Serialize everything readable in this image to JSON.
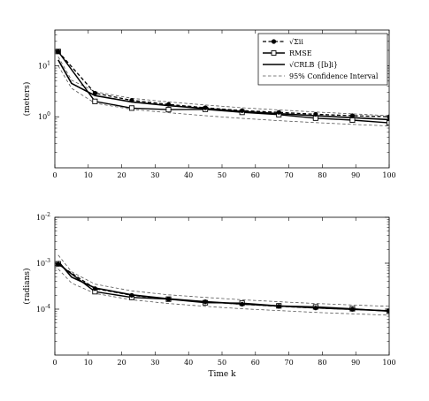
{
  "chart_data": [
    {
      "type": "line",
      "yscale": "log",
      "ylim": [
        0.1,
        50
      ],
      "xlim": [
        0,
        100
      ],
      "xticks": [
        0,
        10,
        20,
        30,
        40,
        50,
        60,
        70,
        80,
        90,
        100
      ],
      "yticks": [
        {
          "value": 1,
          "base": "10",
          "exp": "0"
        },
        {
          "value": 10,
          "base": "10",
          "exp": "1"
        }
      ],
      "xlabel": "",
      "ylabel": "(meters)",
      "legend": {
        "placement": "top-right",
        "entries": [
          {
            "label": "√Σii",
            "style": "dashed-circle"
          },
          {
            "label": "RMSE",
            "style": "solid-square"
          },
          {
            "label": "√CRLB {[b]i}",
            "style": "solid"
          },
          {
            "label": "95% Confidence Interval",
            "style": "dashed-gray"
          }
        ]
      },
      "series": [
        {
          "name": "√Σii",
          "x": [
            1,
            12,
            23,
            34,
            45,
            56,
            67,
            78,
            89,
            100
          ],
          "y": [
            19,
            2.9,
            2.1,
            1.75,
            1.5,
            1.32,
            1.22,
            1.12,
            1.05,
            1.0
          ]
        },
        {
          "name": "RMSE",
          "x": [
            1,
            12,
            23,
            34,
            45,
            56,
            67,
            78,
            89,
            100
          ],
          "y": [
            19,
            2.0,
            1.48,
            1.38,
            1.4,
            1.22,
            1.1,
            0.94,
            0.86,
            0.76
          ]
        },
        {
          "name": "√CRLB {[b]i}",
          "x": [
            1,
            5,
            12,
            23,
            34,
            45,
            56,
            67,
            78,
            89,
            100
          ],
          "y": [
            13,
            4.5,
            2.6,
            1.95,
            1.65,
            1.45,
            1.27,
            1.15,
            1.05,
            0.96,
            0.88
          ]
        },
        {
          "name": "95% Confidence Interval",
          "x": [
            1,
            5,
            12,
            23,
            34,
            45,
            56,
            67,
            78,
            89,
            100
          ],
          "y": [
            15,
            5.2,
            3.1,
            2.3,
            1.95,
            1.7,
            1.5,
            1.36,
            1.24,
            1.14,
            1.05
          ]
        },
        {
          "x": [
            1,
            5,
            12,
            23,
            34,
            45,
            56,
            67,
            78,
            89,
            100
          ],
          "y": [
            10,
            3.6,
            1.85,
            1.4,
            1.2,
            1.05,
            0.93,
            0.84,
            0.77,
            0.71,
            0.66
          ]
        }
      ]
    },
    {
      "type": "line",
      "yscale": "log",
      "ylim": [
        1e-05,
        0.01
      ],
      "xlim": [
        0,
        100
      ],
      "xticks": [
        0,
        10,
        20,
        30,
        40,
        50,
        60,
        70,
        80,
        90,
        100
      ],
      "yticks": [
        {
          "value": 0.0001,
          "base": "10",
          "exp": "-4"
        },
        {
          "value": 0.001,
          "base": "10",
          "exp": "-3"
        },
        {
          "value": 0.01,
          "base": "10",
          "exp": "-2"
        }
      ],
      "xlabel": "Time k",
      "ylabel": "(radians)",
      "series": [
        {
          "name": "√Σii",
          "x": [
            1,
            12,
            23,
            34,
            45,
            56,
            67,
            78,
            89,
            100
          ],
          "y": [
            0.00095,
            0.00028,
            0.0002,
            0.000165,
            0.000145,
            0.000128,
            0.000115,
            0.000106,
            9.9e-05,
            9.2e-05
          ]
        },
        {
          "name": "RMSE",
          "x": [
            1,
            12,
            23,
            34,
            45,
            56,
            67,
            78,
            89,
            100
          ],
          "y": [
            0.00097,
            0.00024,
            0.00018,
            0.000165,
            0.000138,
            0.000135,
            0.000118,
            0.000112,
            0.000102,
            9e-05
          ]
        },
        {
          "name": "√CRLB {[b]i}",
          "x": [
            1,
            5,
            12,
            23,
            34,
            45,
            56,
            67,
            78,
            89,
            100
          ],
          "y": [
            0.0011,
            0.0005,
            0.00029,
            0.000205,
            0.000168,
            0.000146,
            0.000129,
            0.000117,
            0.000107,
            9.9e-05,
            9.2e-05
          ]
        },
        {
          "name": "95% Confidence Interval",
          "x": [
            1,
            5,
            12,
            23,
            34,
            45,
            56,
            67,
            78,
            89,
            100
          ],
          "y": [
            0.0015,
            0.00065,
            0.00035,
            0.00025,
            0.000205,
            0.00018,
            0.00016,
            0.000145,
            0.000133,
            0.000123,
            0.000115
          ]
        },
        {
          "x": [
            1,
            5,
            12,
            23,
            34,
            45,
            56,
            67,
            78,
            89,
            100
          ],
          "y": [
            0.00075,
            0.00037,
            0.00022,
            0.00016,
            0.000133,
            0.000115,
            0.000102,
            9.3e-05,
            8.5e-05,
            7.9e-05,
            7.4e-05
          ]
        }
      ]
    }
  ]
}
